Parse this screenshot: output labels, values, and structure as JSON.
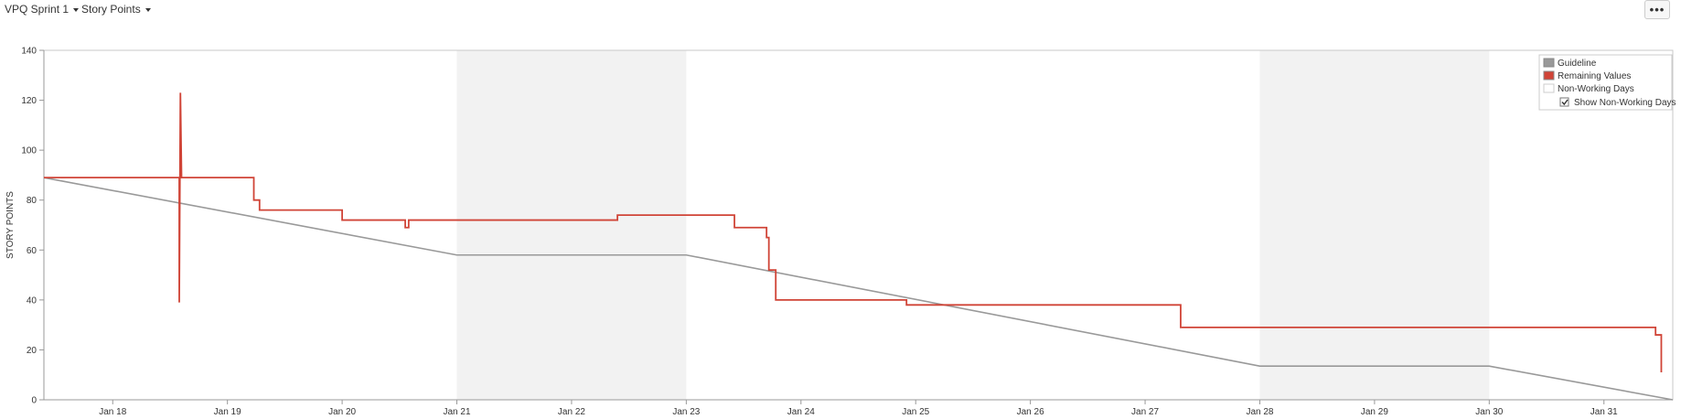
{
  "toolbar": {
    "sprint_label": "VPQ Sprint 1",
    "metric_label": "Story Points",
    "more_label": "•••"
  },
  "colors": {
    "guideline": "#999999",
    "remaining": "#d04437",
    "non_working": "#f2f2f2",
    "axis": "#999999"
  },
  "chart_data": {
    "type": "line",
    "title": "",
    "xlabel": "",
    "ylabel": "STORY POINTS",
    "x_unit": "day (January)",
    "xlim": [
      17.4,
      31.6
    ],
    "ylim": [
      0,
      140
    ],
    "yticks": [
      0,
      20,
      40,
      60,
      80,
      100,
      120,
      140
    ],
    "xticks": [
      {
        "value": 18,
        "label": "Jan 18"
      },
      {
        "value": 19,
        "label": "Jan 19"
      },
      {
        "value": 20,
        "label": "Jan 20"
      },
      {
        "value": 21,
        "label": "Jan 21"
      },
      {
        "value": 22,
        "label": "Jan 22"
      },
      {
        "value": 23,
        "label": "Jan 23"
      },
      {
        "value": 24,
        "label": "Jan 24"
      },
      {
        "value": 25,
        "label": "Jan 25"
      },
      {
        "value": 26,
        "label": "Jan 26"
      },
      {
        "value": 27,
        "label": "Jan 27"
      },
      {
        "value": 28,
        "label": "Jan 28"
      },
      {
        "value": 29,
        "label": "Jan 29"
      },
      {
        "value": 30,
        "label": "Jan 30"
      },
      {
        "value": 31,
        "label": "Jan 31"
      }
    ],
    "non_working_days": [
      [
        21,
        23
      ],
      [
        28,
        30
      ]
    ],
    "legend": {
      "position": "top-right",
      "entries": [
        {
          "label": "Guideline",
          "color": "#999999"
        },
        {
          "label": "Remaining Values",
          "color": "#d04437"
        },
        {
          "label": "Non-Working Days",
          "color": "#ffffff"
        }
      ],
      "checkbox_label": "Show Non-Working Days",
      "checkbox_checked": true
    },
    "series": [
      {
        "name": "Guideline",
        "color": "#999999",
        "step": false,
        "points": [
          [
            17.4,
            89
          ],
          [
            21,
            58
          ],
          [
            23,
            58
          ],
          [
            28,
            13.5
          ],
          [
            30,
            13.5
          ],
          [
            31.6,
            0
          ]
        ]
      },
      {
        "name": "Remaining Values",
        "color": "#d04437",
        "step": true,
        "points": [
          [
            17.4,
            89
          ],
          [
            18.58,
            89
          ],
          [
            18.58,
            39
          ],
          [
            18.59,
            123
          ],
          [
            18.6,
            89
          ],
          [
            19.23,
            89
          ],
          [
            19.23,
            80
          ],
          [
            19.28,
            80
          ],
          [
            19.28,
            76
          ],
          [
            20,
            76
          ],
          [
            20,
            72
          ],
          [
            20.55,
            72
          ],
          [
            20.55,
            69
          ],
          [
            20.58,
            69
          ],
          [
            20.58,
            72
          ],
          [
            22.4,
            72
          ],
          [
            22.4,
            74
          ],
          [
            23.42,
            74
          ],
          [
            23.42,
            69
          ],
          [
            23.7,
            69
          ],
          [
            23.7,
            65
          ],
          [
            23.72,
            65
          ],
          [
            23.72,
            52
          ],
          [
            23.78,
            52
          ],
          [
            23.78,
            40
          ],
          [
            24.92,
            40
          ],
          [
            24.92,
            38
          ],
          [
            27.31,
            38
          ],
          [
            27.31,
            29
          ],
          [
            31.45,
            29
          ],
          [
            31.45,
            26
          ],
          [
            31.5,
            26
          ],
          [
            31.5,
            11
          ]
        ]
      }
    ]
  }
}
